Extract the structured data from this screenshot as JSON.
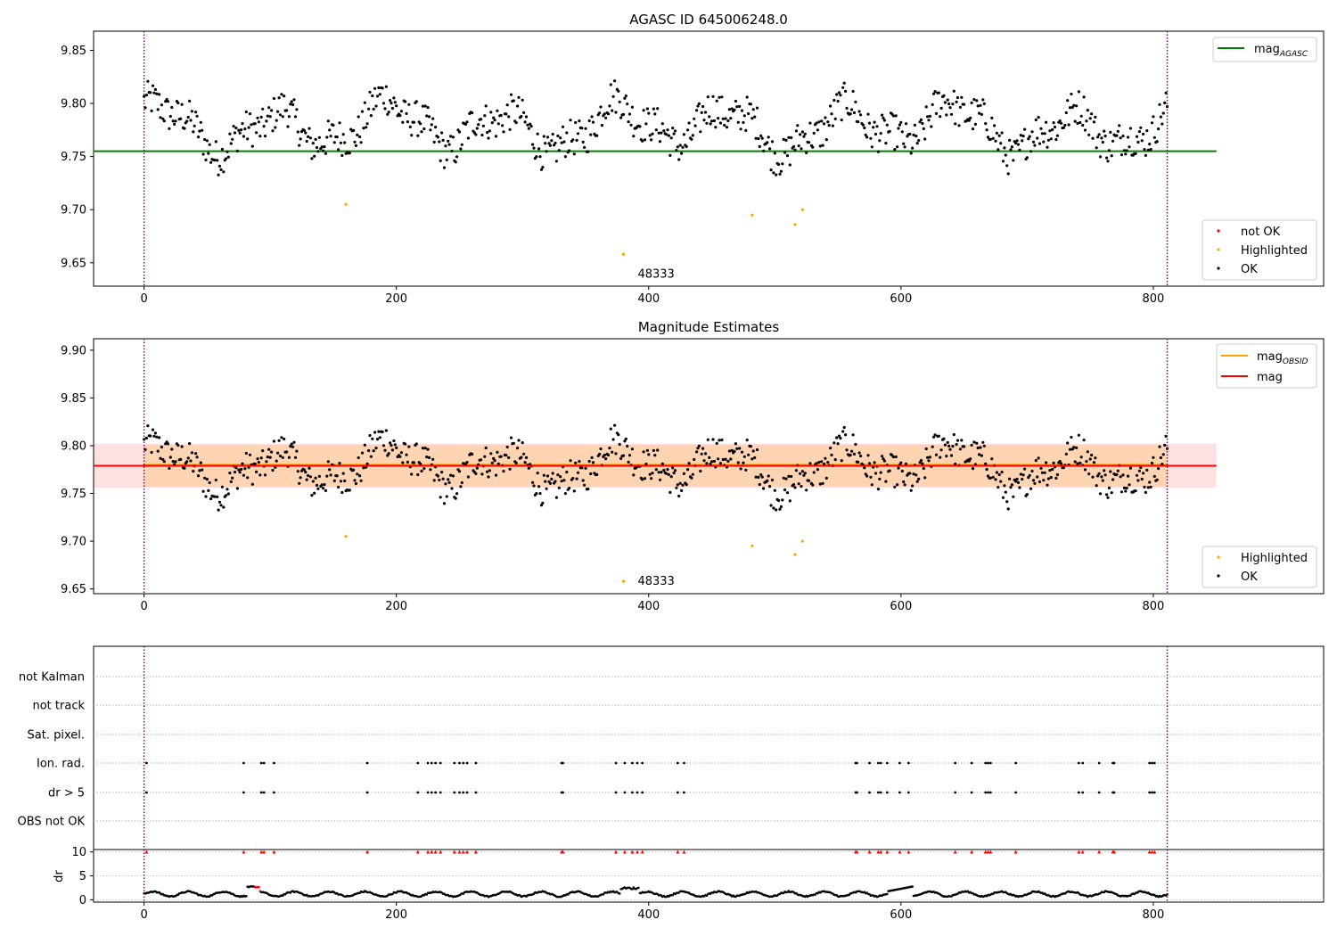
{
  "figure": {
    "panel1_title": "AGASC ID 645006248.0",
    "panel2_title": "Magnitude Estimates",
    "highlight_annotation": "48333"
  },
  "legends": {
    "mag_agasc": {
      "base": "mag",
      "sub": "AGASC",
      "color": "#008000"
    },
    "mag_obsid": {
      "base": "mag",
      "sub": "OBSID",
      "color": "#ffa500"
    },
    "mag": {
      "label": "mag",
      "color": "#ff0000"
    },
    "not_ok": {
      "label": "not OK",
      "color": "#ff0000"
    },
    "highlighted": {
      "label": "Highlighted",
      "color": "#ffa500"
    },
    "ok": {
      "label": "OK",
      "color": "#000000"
    }
  },
  "chart_data": [
    {
      "type": "scatter",
      "title": "AGASC ID 645006248.0",
      "xlim": [
        -40,
        935
      ],
      "ylim": [
        9.628,
        9.868
      ],
      "xticks": [
        0,
        200,
        400,
        600,
        800
      ],
      "yticks": [
        9.65,
        9.7,
        9.75,
        9.8,
        9.85
      ],
      "vertical_lines": [
        0,
        811
      ],
      "mag_agasc": 9.755,
      "series": [
        {
          "name": "not OK",
          "color": "#ff0000",
          "points": []
        },
        {
          "name": "Highlighted",
          "color": "#ffa500",
          "points": [
            [
              160,
              9.705
            ],
            [
              380,
              9.658
            ],
            [
              482,
              9.695
            ],
            [
              516,
              9.686
            ],
            [
              522,
              9.7
            ]
          ]
        },
        {
          "name": "OK",
          "color": "#000000",
          "n": 812,
          "x_range": [
            0,
            811
          ],
          "y_range": [
            9.711,
            9.838
          ]
        }
      ],
      "annotation": {
        "text": "48333",
        "x": 380,
        "y": 9.658
      },
      "legend_loc": "top-right and bottom-right"
    },
    {
      "type": "scatter",
      "title": "Magnitude Estimates",
      "xlim": [
        -40,
        935
      ],
      "ylim": [
        9.645,
        9.912
      ],
      "xticks": [
        0,
        200,
        400,
        600,
        800
      ],
      "yticks": [
        9.65,
        9.7,
        9.75,
        9.8,
        9.85,
        9.9
      ],
      "vertical_lines": [
        0,
        811
      ],
      "mag": 9.779,
      "mag_band": [
        9.756,
        9.802
      ],
      "mag_obsid": 9.78,
      "mag_obsid_band": [
        9.757,
        9.801
      ],
      "series": [
        {
          "name": "Highlighted",
          "color": "#ffa500",
          "points": [
            [
              160,
              9.705
            ],
            [
              380,
              9.658
            ],
            [
              482,
              9.695
            ],
            [
              516,
              9.686
            ],
            [
              522,
              9.7
            ]
          ]
        },
        {
          "name": "OK",
          "color": "#000000",
          "n": 812,
          "x_range": [
            0,
            811
          ],
          "y_range": [
            9.711,
            9.838
          ]
        }
      ],
      "annotation": {
        "text": "48333",
        "x": 380,
        "y": 9.658
      },
      "legend_loc": "top-right and bottom-right"
    },
    {
      "type": "scatter",
      "xlim": [
        -40,
        935
      ],
      "categories": [
        "not Kalman",
        "not track",
        "Sat. pixel.",
        "Ion. rad.",
        "dr > 5",
        "OBS not OK"
      ],
      "flagged_x": [
        2,
        79,
        93,
        95,
        103,
        177,
        217,
        225,
        228,
        231,
        235,
        246,
        250,
        253,
        256,
        263,
        331,
        332,
        374,
        381,
        387,
        391,
        395,
        423,
        428,
        564,
        565,
        575,
        582,
        584,
        589,
        599,
        606,
        643,
        656,
        667,
        669,
        671,
        691,
        741,
        744,
        757,
        768,
        769,
        797,
        799,
        801
      ],
      "flagged_rows": [
        "Ion. rad.",
        "dr > 5"
      ]
    },
    {
      "type": "scatter",
      "ylabel": "dr",
      "xlim": [
        -40,
        935
      ],
      "ylim": [
        -0.5,
        10.5
      ],
      "xticks": [
        0,
        200,
        400,
        600,
        800
      ],
      "yticks": [
        0,
        5,
        10
      ],
      "vertical_lines": [
        0,
        811
      ],
      "threshold": 10,
      "series": [
        {
          "name": "dr",
          "color": "#000000",
          "n": 812,
          "y_range": [
            0.4,
            3.0
          ]
        },
        {
          "name": "dr > 5",
          "color": "#ff0000",
          "marker": "triangle-up",
          "y": 10
        }
      ]
    }
  ]
}
